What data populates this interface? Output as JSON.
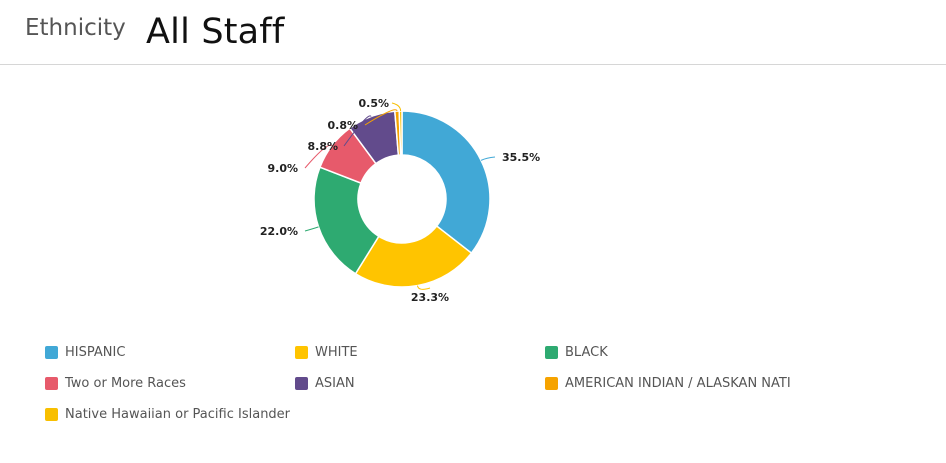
{
  "header": {
    "section_label": "Ethnicity",
    "title": "All Staff"
  },
  "chart_data": {
    "type": "pie",
    "variant": "donut",
    "title": "All Staff",
    "start_angle_deg": 0,
    "slices": [
      {
        "label": "HISPANIC",
        "value": 35.5,
        "display": "35.5%",
        "color": "#41a8d6"
      },
      {
        "label": "WHITE",
        "value": 23.3,
        "display": "23.3%",
        "color": "#ffc400"
      },
      {
        "label": "BLACK",
        "value": 22.0,
        "display": "22.0%",
        "color": "#2eaa71"
      },
      {
        "label": "Two or More Races",
        "value": 9.0,
        "display": "9.0%",
        "color": "#e75a6b"
      },
      {
        "label": "ASIAN",
        "value": 8.8,
        "display": "8.8%",
        "color": "#624b8c"
      },
      {
        "label": "AMERICAN INDIAN / ALASKAN NATI",
        "value": 0.8,
        "display": "0.8%",
        "color": "#f6a300"
      },
      {
        "label": "Native Hawaiian or Pacific Islander",
        "value": 0.5,
        "display": "0.5%",
        "color": "#f8bf00"
      }
    ],
    "legend_position": "bottom"
  }
}
